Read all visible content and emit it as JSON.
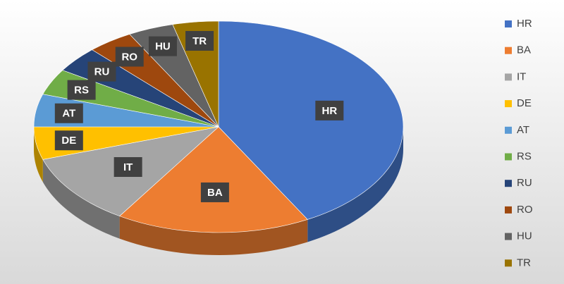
{
  "chart_data": {
    "type": "pie3d",
    "categories": [
      "HR",
      "BA",
      "IT",
      "DE",
      "AT",
      "RS",
      "RU",
      "RO",
      "HU",
      "TR"
    ],
    "values": [
      42,
      17,
      11,
      5,
      5,
      4,
      4,
      4,
      4,
      4
    ],
    "colors": [
      "#4472c4",
      "#ed7d31",
      "#a5a5a5",
      "#ffc000",
      "#5b9bd5",
      "#70ad47",
      "#264478",
      "#9e480e",
      "#636363",
      "#997300"
    ],
    "legend": "right"
  }
}
